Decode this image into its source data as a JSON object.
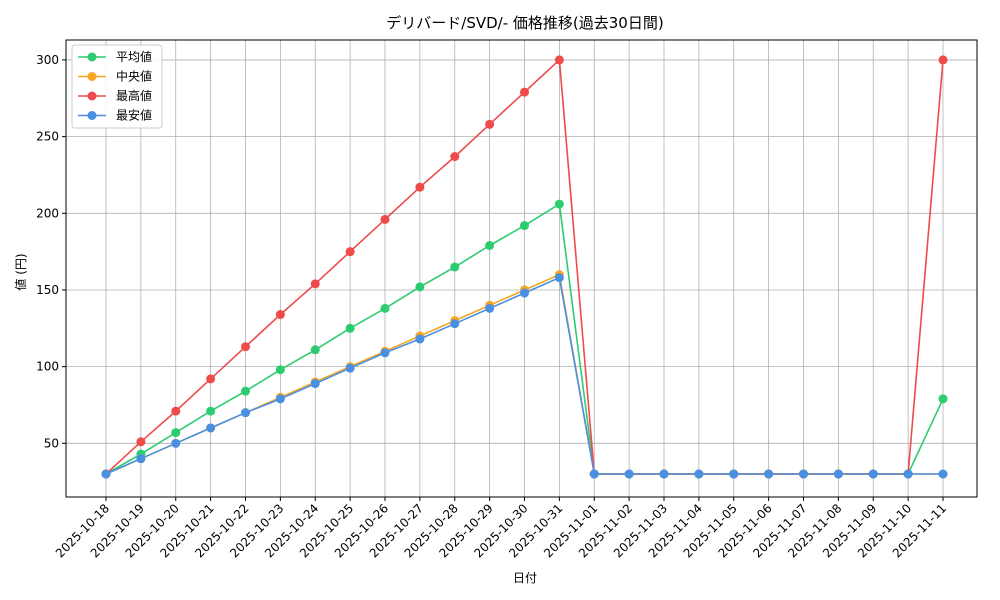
{
  "chart_data": {
    "type": "line",
    "title": "デリバード/SVD/- 価格推移(過去30日間)",
    "xlabel": "日付",
    "ylabel": "値 (円)",
    "ylim": [
      15,
      313
    ],
    "yticks": [
      50,
      100,
      150,
      200,
      250,
      300
    ],
    "grid": true,
    "legend_position": "top-left",
    "categories": [
      "2025-10-18",
      "2025-10-19",
      "2025-10-20",
      "2025-10-21",
      "2025-10-22",
      "2025-10-23",
      "2025-10-24",
      "2025-10-25",
      "2025-10-26",
      "2025-10-27",
      "2025-10-28",
      "2025-10-29",
      "2025-10-30",
      "2025-10-31",
      "2025-11-01",
      "2025-11-02",
      "2025-11-03",
      "2025-11-04",
      "2025-11-05",
      "2025-11-06",
      "2025-11-07",
      "2025-11-08",
      "2025-11-09",
      "2025-11-10",
      "2025-11-11"
    ],
    "series": [
      {
        "name": "平均値",
        "color": "#2ecc71",
        "values": [
          30,
          43,
          57,
          71,
          84,
          98,
          111,
          125,
          138,
          152,
          165,
          179,
          192,
          206,
          30,
          30,
          30,
          30,
          30,
          30,
          30,
          30,
          30,
          30,
          79
        ]
      },
      {
        "name": "中央値",
        "color": "#f5a623",
        "values": [
          30,
          40,
          50,
          60,
          70,
          80,
          90,
          100,
          110,
          120,
          130,
          140,
          150,
          160,
          30,
          30,
          30,
          30,
          30,
          30,
          30,
          30,
          30,
          30,
          30
        ]
      },
      {
        "name": "最高値",
        "color": "#ef4b4b",
        "values": [
          30,
          51,
          71,
          92,
          113,
          134,
          154,
          175,
          196,
          217,
          237,
          258,
          279,
          300,
          30,
          30,
          30,
          30,
          30,
          30,
          30,
          30,
          30,
          30,
          300
        ]
      },
      {
        "name": "最安値",
        "color": "#4a90e2",
        "values": [
          30,
          40,
          50,
          60,
          70,
          79,
          89,
          99,
          109,
          118,
          128,
          138,
          148,
          158,
          30,
          30,
          30,
          30,
          30,
          30,
          30,
          30,
          30,
          30,
          30
        ]
      }
    ]
  }
}
